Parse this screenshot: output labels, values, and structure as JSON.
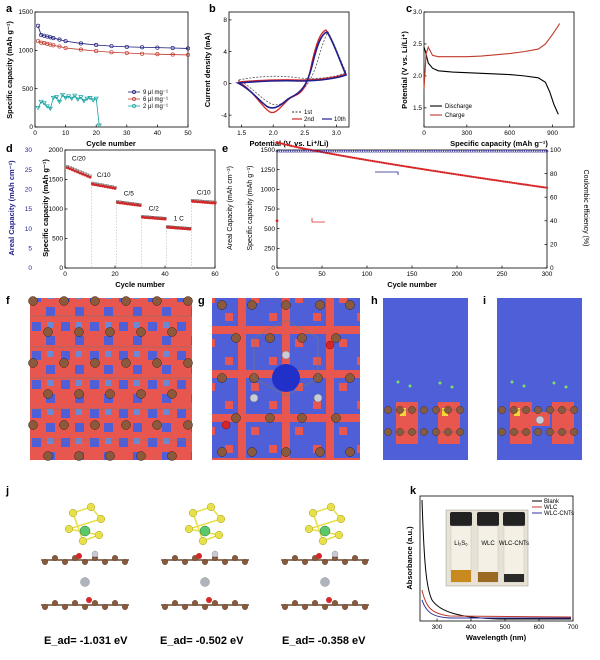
{
  "panel_labels": [
    "a",
    "b",
    "c",
    "d",
    "e",
    "f",
    "g",
    "h",
    "i",
    "j",
    "k"
  ],
  "chart_data": [
    {
      "id": "a",
      "type": "line",
      "xlabel": "Cycle number",
      "ylabel": "Specific capacity (mAh g⁻¹)",
      "xlim": [
        0,
        50
      ],
      "ylim": [
        0,
        1500
      ],
      "xticks": [
        "0",
        "10",
        "20",
        "30",
        "40",
        "50"
      ],
      "yticks": [
        "0",
        "500",
        "1000",
        "1500"
      ],
      "legend_position": "center-right",
      "series": [
        {
          "name": "9 μl mg⁻¹",
          "color": "#1a1a7a",
          "x": [
            1,
            2,
            3,
            4,
            5,
            6,
            8,
            10,
            15,
            20,
            25,
            30,
            35,
            40,
            45,
            50
          ],
          "values": [
            1320,
            1200,
            1190,
            1180,
            1170,
            1160,
            1140,
            1120,
            1090,
            1070,
            1055,
            1045,
            1040,
            1035,
            1030,
            1025
          ]
        },
        {
          "name": "6 μl mg⁻¹",
          "color": "#c0392b",
          "x": [
            1,
            2,
            3,
            4,
            5,
            6,
            8,
            10,
            15,
            20,
            25,
            30,
            35,
            40,
            45,
            50
          ],
          "values": [
            1120,
            1100,
            1095,
            1085,
            1075,
            1065,
            1050,
            1030,
            1010,
            990,
            975,
            965,
            955,
            950,
            945,
            940
          ]
        },
        {
          "name": "2 μl mg⁻¹",
          "color": "#17a4a4",
          "x": [
            1,
            2,
            3,
            4,
            5,
            6,
            7,
            8,
            9,
            10,
            11,
            12,
            13,
            14,
            15,
            16,
            17,
            18,
            19,
            20,
            21
          ],
          "values": [
            250,
            330,
            310,
            270,
            240,
            380,
            390,
            330,
            420,
            380,
            400,
            370,
            410,
            360,
            390,
            340,
            370,
            380,
            350,
            370,
            20
          ]
        }
      ]
    },
    {
      "id": "b",
      "type": "line",
      "xlabel": "Potential (V, vs. Li⁺/Li)",
      "ylabel": "Current density (mA)",
      "xlim": [
        1.3,
        3.2
      ],
      "ylim": [
        -5.5,
        9
      ],
      "xticks": [
        "1.5",
        "2.0",
        "2.5",
        "3.0"
      ],
      "yticks": [
        "-4",
        "0",
        "4",
        "8"
      ],
      "legend_position": "bottom-right",
      "series": [
        {
          "name": "1st",
          "color": "#555555",
          "dashed": true
        },
        {
          "name": "2nd",
          "color": "#d62728"
        },
        {
          "name": "10th",
          "color": "#1f1f8f"
        }
      ]
    },
    {
      "id": "c",
      "type": "line",
      "xlabel": "Specific capacity (mAh g⁻¹)",
      "ylabel": "Potential (V vs. Li/Li⁺)",
      "xlim": [
        0,
        1050
      ],
      "ylim": [
        1.2,
        3.0
      ],
      "xticks": [
        "0",
        "300",
        "600",
        "900"
      ],
      "yticks": [
        "1.5",
        "2.0",
        "2.5",
        "3.0"
      ],
      "legend_position": "bottom-left",
      "series": [
        {
          "name": "Discharge",
          "color": "#000000",
          "x": [
            0,
            10,
            30,
            60,
            100,
            200,
            300,
            400,
            500,
            600,
            700,
            800,
            850,
            880,
            910,
            940
          ],
          "values": [
            2.45,
            2.38,
            2.2,
            2.12,
            2.08,
            2.06,
            2.05,
            2.04,
            2.03,
            2.02,
            2.0,
            1.97,
            1.9,
            1.75,
            1.55,
            1.4
          ]
        },
        {
          "name": "Charge",
          "color": "#c0392b",
          "x": [
            0,
            15,
            30,
            60,
            100,
            200,
            300,
            400,
            500,
            600,
            700,
            800,
            850,
            900,
            930,
            950
          ],
          "values": [
            1.8,
            2.35,
            2.45,
            2.32,
            2.3,
            2.3,
            2.3,
            2.31,
            2.33,
            2.35,
            2.38,
            2.42,
            2.5,
            2.65,
            2.75,
            2.82
          ]
        }
      ]
    },
    {
      "id": "d",
      "type": "scatter",
      "xlabel": "Cycle number",
      "ylabel": "Specific capacity (mAh g⁻¹)",
      "ylabel2": "Areal Capacity (mAh cm⁻²)",
      "xlim": [
        0,
        60
      ],
      "ylim": [
        0,
        2000
      ],
      "y2lim": [
        0,
        30
      ],
      "xticks": [
        "0",
        "20",
        "40",
        "60"
      ],
      "yticks": [
        "0",
        "500",
        "1000",
        "1500",
        "2000"
      ],
      "y2ticks": [
        "0",
        "5",
        "10",
        "15",
        "20",
        "25",
        "30"
      ],
      "rate_labels": [
        "C/20",
        "C/10",
        "C/5",
        "C/2",
        "1 C",
        "C/10"
      ],
      "segments": [
        {
          "x0": 1,
          "x1": 10,
          "v0": 1700,
          "v1": 1540
        },
        {
          "x0": 11,
          "x1": 20,
          "v0": 1420,
          "v1": 1350
        },
        {
          "x0": 21,
          "x1": 30,
          "v0": 1110,
          "v1": 1060
        },
        {
          "x0": 31,
          "x1": 40,
          "v0": 860,
          "v1": 830
        },
        {
          "x0": 41,
          "x1": 50,
          "v0": 690,
          "v1": 660
        },
        {
          "x0": 51,
          "x1": 60,
          "v0": 1130,
          "v1": 1100
        }
      ]
    },
    {
      "id": "e",
      "type": "scatter",
      "xlabel": "Cycle number",
      "ylabel": "Specific capacity (mAh g⁻¹)",
      "ylabel_left": "Areal Capacity (mAh cm⁻²)",
      "ylabel2": "Coulombic efficiency (%)",
      "xlim": [
        0,
        300
      ],
      "ylim": [
        0,
        1500
      ],
      "y2lim": [
        0,
        100
      ],
      "xticks": [
        "0",
        "50",
        "100",
        "150",
        "200",
        "250",
        "300"
      ],
      "yticks": [
        "0",
        "250",
        "500",
        "750",
        "1000",
        "1250",
        "1500"
      ],
      "y2ticks": [
        "0",
        "20",
        "40",
        "60",
        "80",
        "100"
      ],
      "series": [
        {
          "name": "Specific capacity",
          "color": "#d62728",
          "start": 1600,
          "end": 1020
        },
        {
          "name": "Coulombic efficiency",
          "color": "#1f1f8f",
          "value": 99
        }
      ]
    },
    {
      "id": "k",
      "type": "line",
      "xlabel": "Wavelength (nm)",
      "ylabel": "Absorbance (a.u.)",
      "xlim": [
        250,
        700
      ],
      "xticks": [
        "300",
        "400",
        "500",
        "600",
        "700"
      ],
      "legend_position": "top-right",
      "series": [
        {
          "name": "Blank",
          "color": "#000000"
        },
        {
          "name": "WLC",
          "color": "#c0392b"
        },
        {
          "name": "WLC-CNTs",
          "color": "#3030a0"
        }
      ],
      "vial_labels": [
        "Li₂S₆",
        "WLC",
        "WLC-CNTs"
      ]
    }
  ],
  "adsorption_energies": [
    "E_ad= -1.031 eV",
    "E_ad= -0.502 eV",
    "E_ad= -0.358 eV"
  ],
  "colors": {
    "grid_red": "#e8574f",
    "grid_blue": "#4e5fd8",
    "atom_brown": "#8b5a3c",
    "sulfur_yellow": "#e8e04a",
    "li_green": "#5cc86a"
  }
}
